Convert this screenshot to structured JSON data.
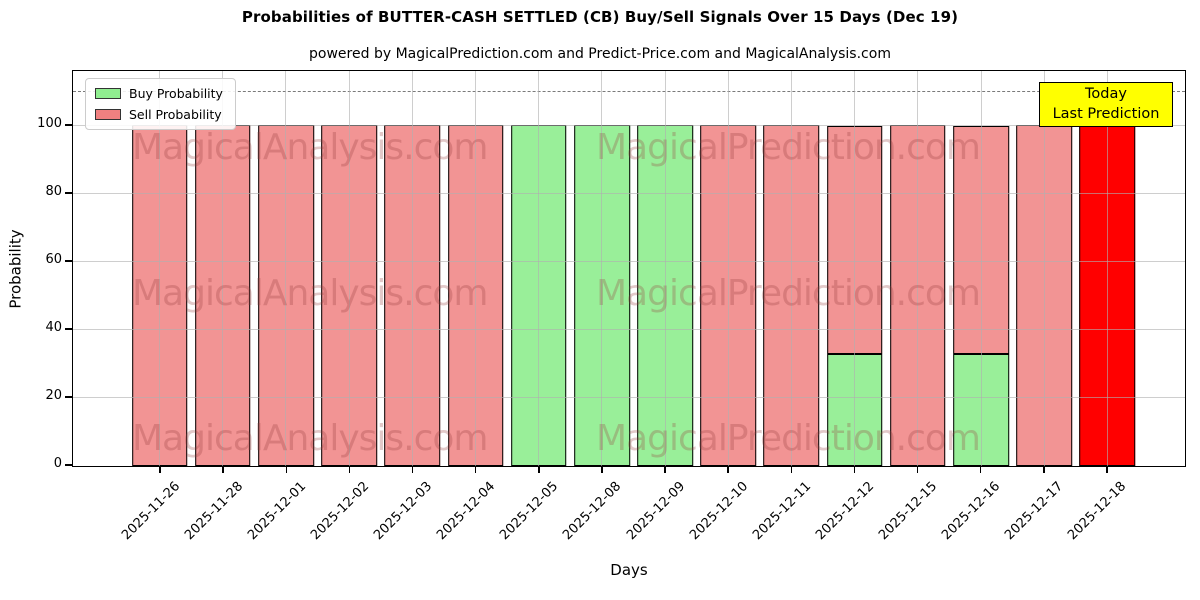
{
  "title": "Probabilities of BUTTER-CASH SETTLED (CB) Buy/Sell Signals Over 15 Days (Dec 19)",
  "subtitle": "powered by MagicalPrediction.com and Predict-Price.com and MagicalAnalysis.com",
  "legend": {
    "buy_label": "Buy Probability",
    "sell_label": "Sell Probability"
  },
  "annotation_box": {
    "line1": "Today",
    "line2": "Last Prediction",
    "bg_color": "#ffff00"
  },
  "watermarks": {
    "left": "MagicalAnalysis.com",
    "right": "MagicalPrediction.com"
  },
  "axes": {
    "x_label": "Days",
    "y_label": "Probability",
    "y_ticks": [
      0,
      20,
      40,
      60,
      80,
      100
    ]
  },
  "colors": {
    "buy": "#90ee90",
    "sell": "#f08080",
    "today": "#ff0000",
    "grid": "#b0b0b0",
    "dashed_line": "#7a7a7a"
  },
  "chart_data": {
    "type": "bar",
    "stacked": true,
    "title": "Probabilities of BUTTER-CASH SETTLED (CB) Buy/Sell Signals Over 15 Days (Dec 19)",
    "xlabel": "Days",
    "ylabel": "Probability",
    "ylim": [
      0,
      116
    ],
    "grid": true,
    "legend_position": "upper left",
    "dashed_line_y": 110,
    "categories": [
      "2025-11-26",
      "2025-11-28",
      "2025-12-01",
      "2025-12-02",
      "2025-12-03",
      "2025-12-04",
      "2025-12-05",
      "2025-12-08",
      "2025-12-09",
      "2025-12-10",
      "2025-12-11",
      "2025-12-12",
      "2025-12-15",
      "2025-12-16",
      "2025-12-17",
      "2025-12-18"
    ],
    "series": [
      {
        "name": "Buy Probability",
        "color": "#90ee90",
        "values": [
          0,
          0,
          0,
          0,
          0,
          0,
          100,
          100,
          100,
          0,
          0,
          33,
          0,
          33,
          0,
          0
        ]
      },
      {
        "name": "Sell Probability",
        "color": "#f08080",
        "values": [
          100,
          100,
          100,
          100,
          100,
          100,
          0,
          0,
          0,
          100,
          100,
          67,
          100,
          67,
          100,
          100
        ]
      }
    ],
    "today_index": 15,
    "today_bar": {
      "category": "2025-12-18",
      "value": 100,
      "color": "#ff0000",
      "label": "Today / Last Prediction"
    }
  }
}
